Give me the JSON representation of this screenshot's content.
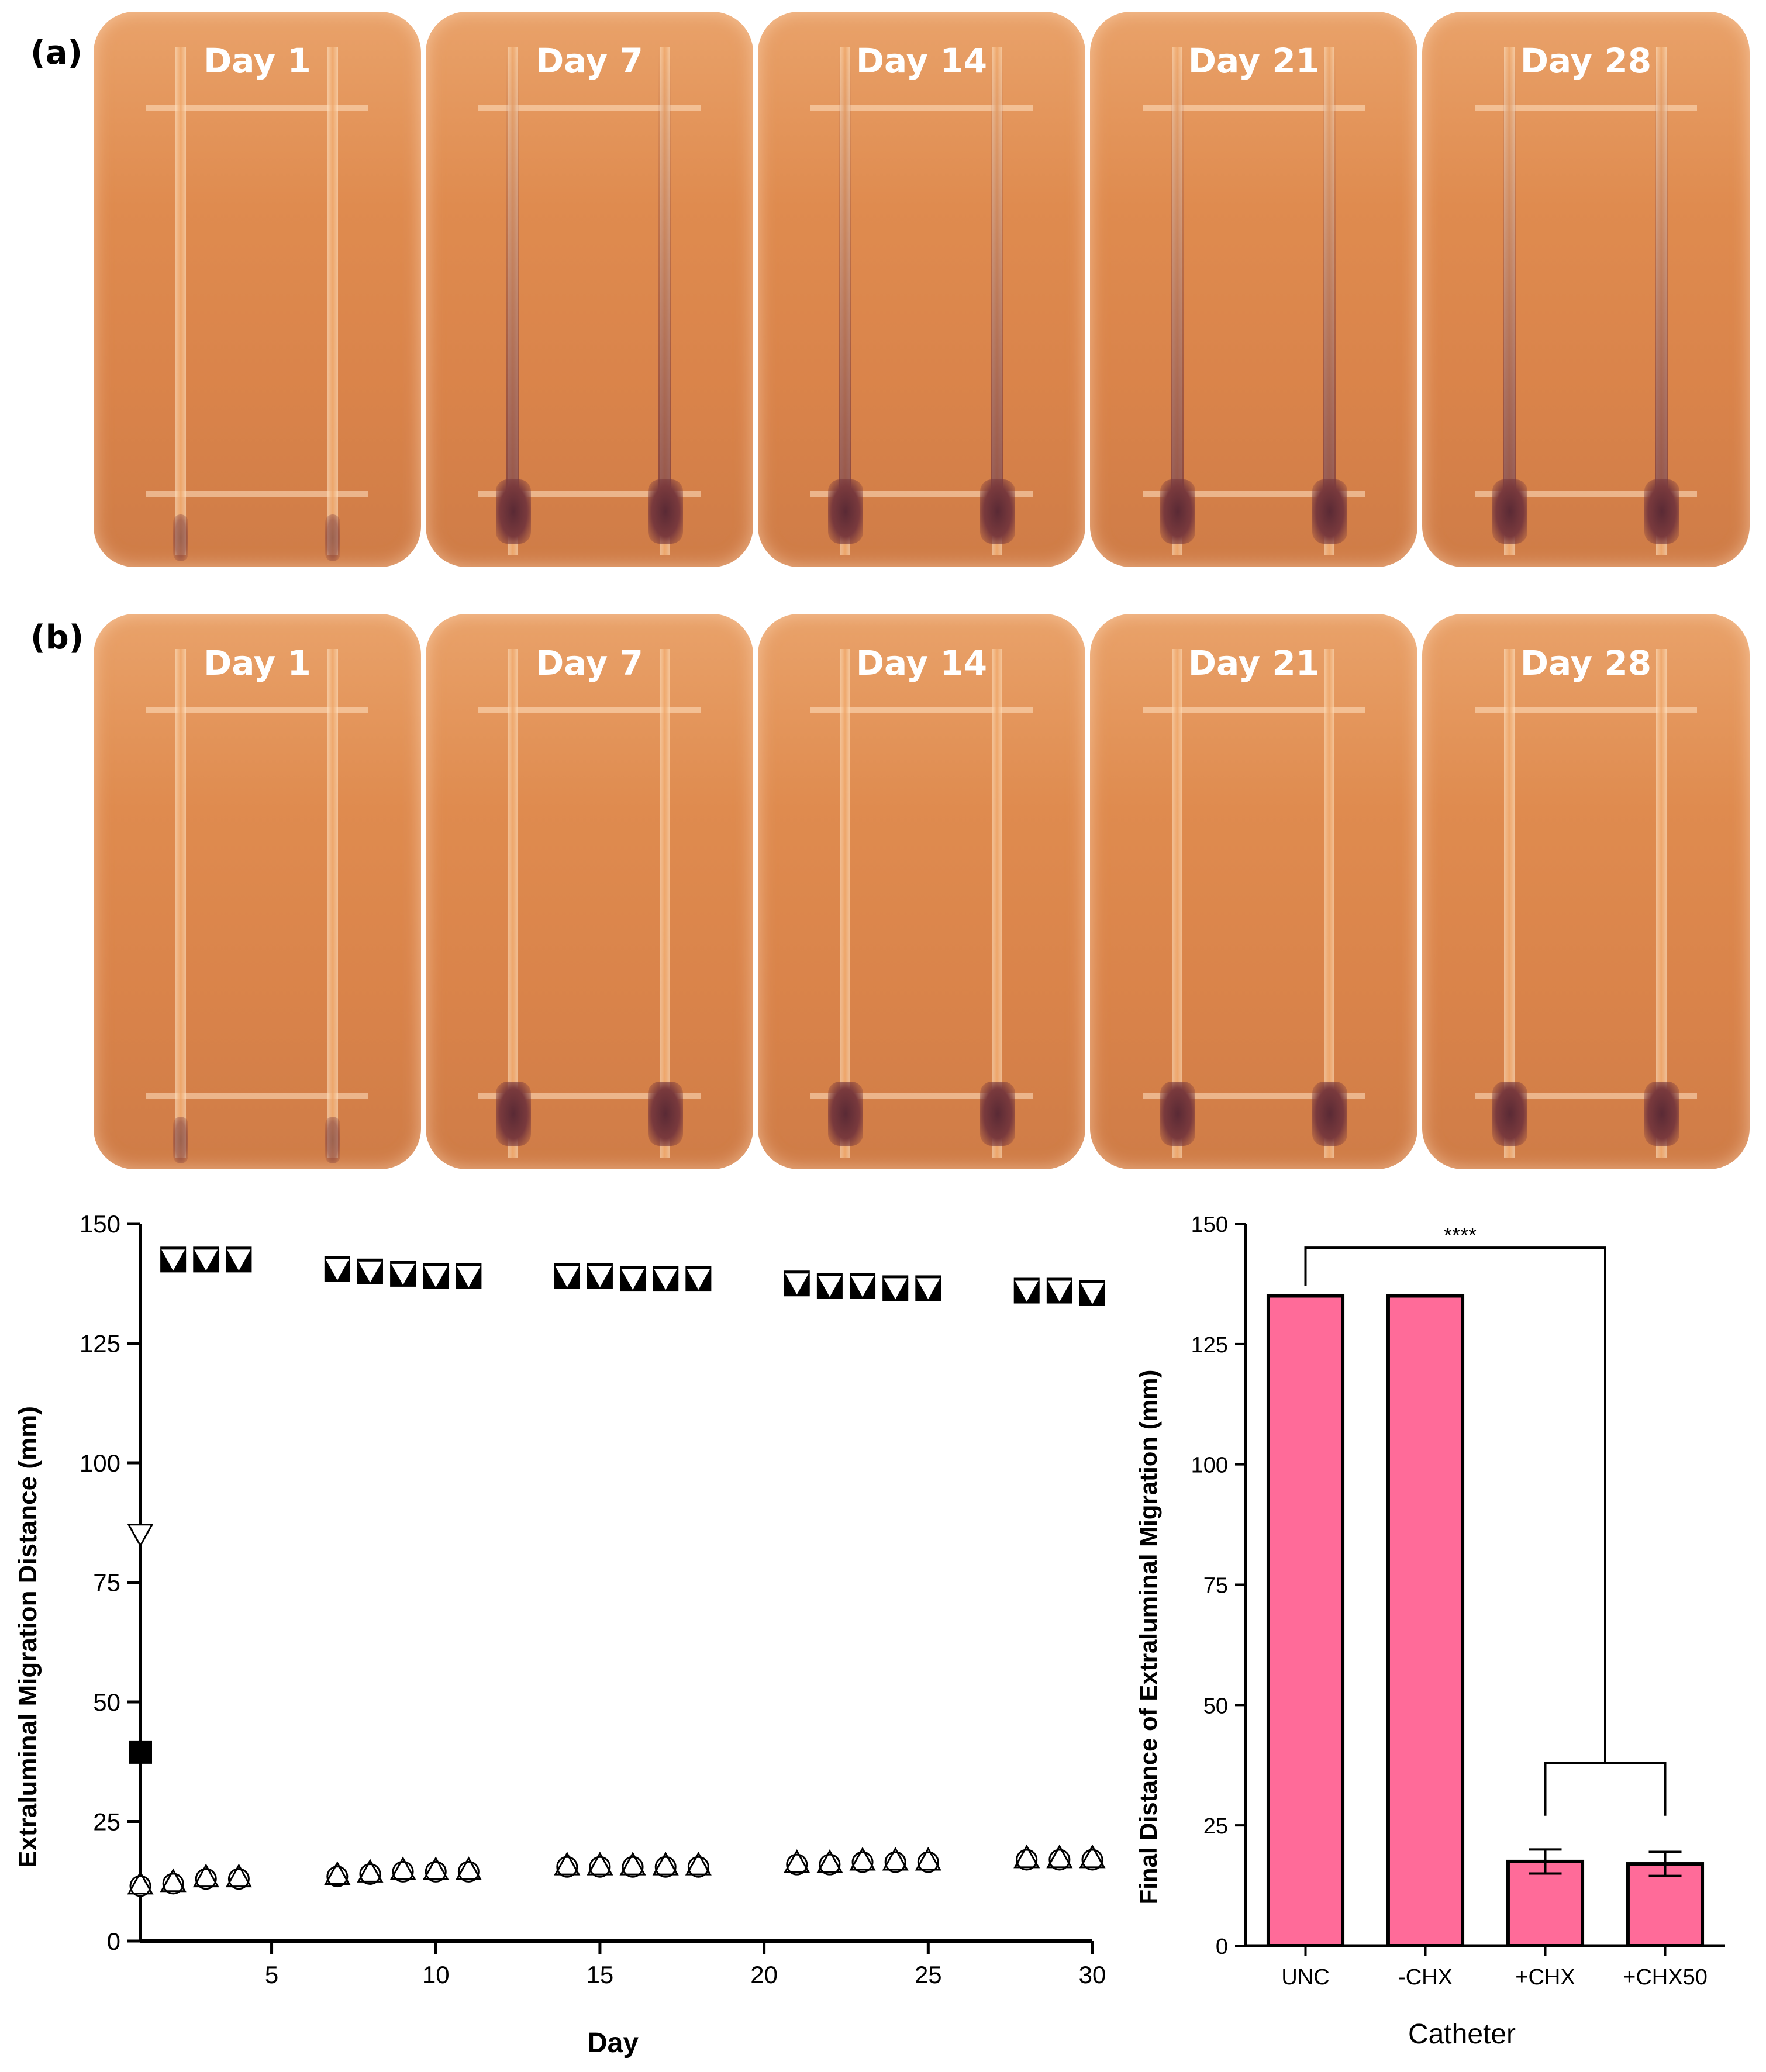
{
  "panels": {
    "a": {
      "label": "(a)",
      "plates": [
        {
          "day": "Day 1",
          "migration": "none"
        },
        {
          "day": "Day 7",
          "migration": "full"
        },
        {
          "day": "Day 14",
          "migration": "full"
        },
        {
          "day": "Day 21",
          "migration": "full"
        },
        {
          "day": "Day 28",
          "migration": "full"
        }
      ]
    },
    "b": {
      "label": "(b)",
      "plates": [
        {
          "day": "Day 1",
          "migration": "none"
        },
        {
          "day": "Day 7",
          "migration": "base"
        },
        {
          "day": "Day 14",
          "migration": "base"
        },
        {
          "day": "Day 21",
          "migration": "base"
        },
        {
          "day": "Day 28",
          "migration": "base"
        }
      ]
    }
  },
  "colors": {
    "bar_fill": "#ff6b99",
    "plate": "#df8b4f",
    "stain": "#5a2a35"
  },
  "chart_data": [
    {
      "type": "scatter",
      "title": "",
      "xlabel": "Day",
      "ylabel": "Extraluminal Migration Distance (mm)",
      "xlim": [
        1,
        30
      ],
      "ylim": [
        0,
        150
      ],
      "xticks": [
        5,
        10,
        15,
        20,
        25,
        30
      ],
      "yticks": [
        0,
        25,
        50,
        75,
        100,
        125,
        150
      ],
      "series": [
        {
          "name": "filled-down-triangle",
          "marker": "triangle-down-filled",
          "x": [
            2,
            3,
            4,
            7,
            8,
            9,
            10,
            11,
            14,
            15,
            16,
            17,
            18,
            21,
            22,
            23,
            24,
            25,
            28,
            29,
            30
          ],
          "y": [
            142.5,
            142.5,
            142.5,
            140.5,
            140,
            139.5,
            139,
            139,
            139,
            139,
            138.5,
            138.5,
            138.5,
            137.5,
            137,
            137,
            136.5,
            136.5,
            136,
            136,
            135.5
          ]
        },
        {
          "name": "open-down-triangle",
          "marker": "triangle-down-open",
          "x": [
            1
          ],
          "y": [
            85
          ]
        },
        {
          "name": "filled-square",
          "marker": "square-filled",
          "x": [
            1
          ],
          "y": [
            39.5
          ]
        },
        {
          "name": "open-circle",
          "marker": "circle-open",
          "x": [
            1,
            2,
            3,
            4,
            7,
            8,
            9,
            10,
            11,
            14,
            15,
            16,
            17,
            18,
            21,
            22,
            23,
            24,
            25,
            28,
            29,
            30
          ],
          "y": [
            11.5,
            12,
            13,
            13,
            13.5,
            14,
            14.5,
            14.5,
            14.5,
            15.5,
            15.5,
            15.5,
            15.5,
            15.5,
            16,
            16,
            16.5,
            16.5,
            16.5,
            17,
            17,
            17
          ]
        },
        {
          "name": "open-up-triangle",
          "marker": "triangle-up-open",
          "x": [
            1,
            2,
            3,
            4,
            7,
            8,
            9,
            10,
            11,
            14,
            15,
            16,
            17,
            18,
            21,
            22,
            23,
            24,
            25,
            28,
            29,
            30
          ],
          "y": [
            12,
            12.5,
            13.5,
            13.5,
            14,
            14.5,
            15,
            15,
            15,
            16,
            16,
            16,
            16,
            16,
            16.5,
            16.5,
            17,
            17,
            17,
            17.5,
            17.5,
            17.5
          ]
        }
      ]
    },
    {
      "type": "bar",
      "title": "",
      "xlabel": "Catheter",
      "ylabel": "Final Distance of Extraluminal Migration (mm)",
      "categories": [
        "UNC",
        "-CHX",
        "+CHX",
        "+CHX50"
      ],
      "values": [
        135,
        135,
        17.5,
        17
      ],
      "errors": [
        0,
        0,
        2.5,
        2.5
      ],
      "ylim": [
        0,
        150
      ],
      "yticks": [
        0,
        25,
        50,
        75,
        100,
        125,
        150
      ],
      "annotation": "****"
    }
  ]
}
